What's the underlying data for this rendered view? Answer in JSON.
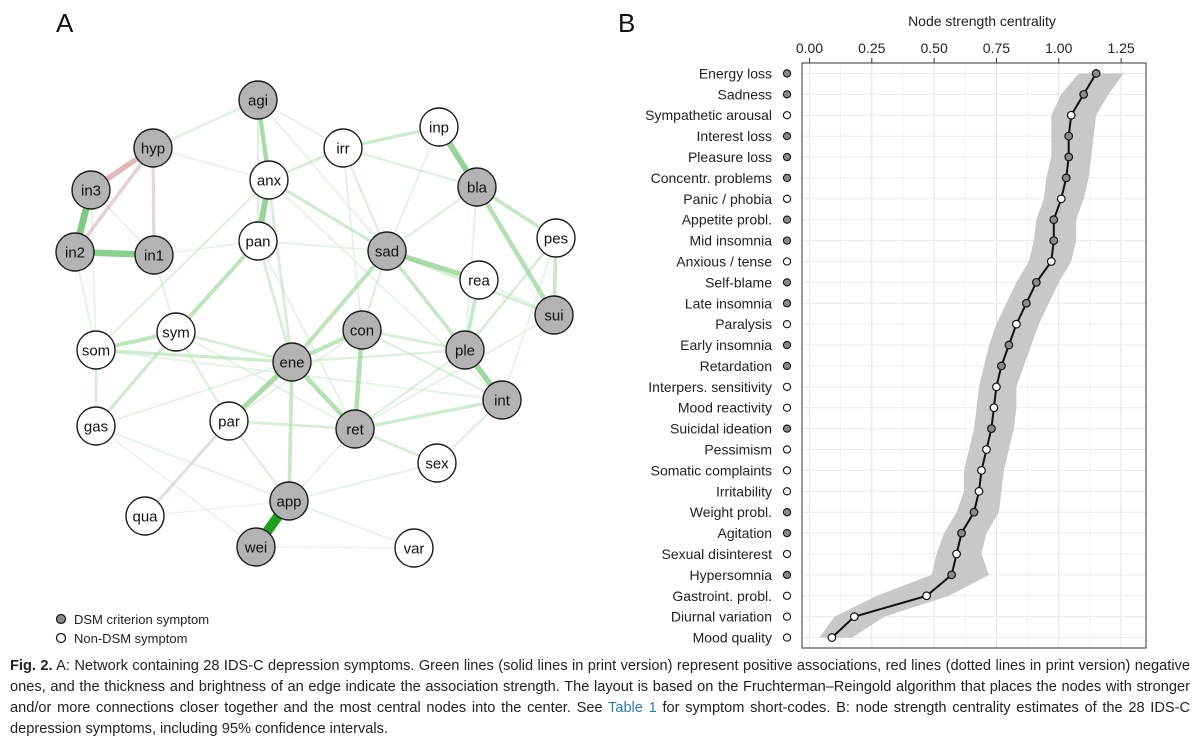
{
  "panels": {
    "a_label": "A",
    "b_label": "B"
  },
  "network": {
    "nodes": [
      {
        "id": "agi",
        "dsm": true
      },
      {
        "id": "hyp",
        "dsm": true
      },
      {
        "id": "irr",
        "dsm": false
      },
      {
        "id": "inp",
        "dsm": false
      },
      {
        "id": "anx",
        "dsm": false
      },
      {
        "id": "in3",
        "dsm": true
      },
      {
        "id": "bla",
        "dsm": true
      },
      {
        "id": "pan",
        "dsm": false
      },
      {
        "id": "sad",
        "dsm": true
      },
      {
        "id": "pes",
        "dsm": false
      },
      {
        "id": "in2",
        "dsm": true
      },
      {
        "id": "in1",
        "dsm": true
      },
      {
        "id": "rea",
        "dsm": false
      },
      {
        "id": "sui",
        "dsm": true
      },
      {
        "id": "con",
        "dsm": true
      },
      {
        "id": "sym",
        "dsm": false
      },
      {
        "id": "som",
        "dsm": false
      },
      {
        "id": "ple",
        "dsm": true
      },
      {
        "id": "ene",
        "dsm": true
      },
      {
        "id": "int",
        "dsm": true
      },
      {
        "id": "gas",
        "dsm": false
      },
      {
        "id": "par",
        "dsm": false
      },
      {
        "id": "ret",
        "dsm": true
      },
      {
        "id": "sex",
        "dsm": false
      },
      {
        "id": "app",
        "dsm": true
      },
      {
        "id": "qua",
        "dsm": false
      },
      {
        "id": "wei",
        "dsm": true
      },
      {
        "id": "var",
        "dsm": false
      }
    ],
    "edges": [
      [
        "app",
        "wei",
        1.0,
        "pos"
      ],
      [
        "in2",
        "in3",
        0.65,
        "pos"
      ],
      [
        "in2",
        "in1",
        0.6,
        "pos"
      ],
      [
        "inp",
        "bla",
        0.55,
        "pos"
      ],
      [
        "anx",
        "pan",
        0.55,
        "pos"
      ],
      [
        "agi",
        "anx",
        0.4,
        "pos"
      ],
      [
        "ple",
        "int",
        0.5,
        "pos"
      ],
      [
        "ene",
        "par",
        0.45,
        "pos"
      ],
      [
        "sad",
        "rea",
        0.45,
        "pos"
      ],
      [
        "ene",
        "ret",
        0.4,
        "pos"
      ],
      [
        "bla",
        "sui",
        0.4,
        "pos"
      ],
      [
        "con",
        "ret",
        0.4,
        "pos"
      ],
      [
        "con",
        "ene",
        0.35,
        "pos"
      ],
      [
        "sad",
        "ene",
        0.35,
        "pos"
      ],
      [
        "pan",
        "sym",
        0.35,
        "pos"
      ],
      [
        "sym",
        "som",
        0.35,
        "pos"
      ],
      [
        "ene",
        "app",
        0.3,
        "pos"
      ],
      [
        "bla",
        "pes",
        0.3,
        "pos"
      ],
      [
        "pes",
        "sui",
        0.3,
        "pos"
      ],
      [
        "rea",
        "ple",
        0.3,
        "pos"
      ],
      [
        "irr",
        "inp",
        0.25,
        "pos"
      ],
      [
        "sad",
        "ple",
        0.3,
        "pos"
      ],
      [
        "sym",
        "gas",
        0.25,
        "pos"
      ],
      [
        "som",
        "gas",
        0.2,
        "pos"
      ],
      [
        "som",
        "ene",
        0.25,
        "pos"
      ],
      [
        "anx",
        "sad",
        0.25,
        "pos"
      ],
      [
        "agi",
        "ene",
        0.2,
        "pos"
      ],
      [
        "ret",
        "sex",
        0.2,
        "pos"
      ],
      [
        "int",
        "ret",
        0.25,
        "pos"
      ],
      [
        "pes",
        "ple",
        0.2,
        "pos"
      ],
      [
        "par",
        "ret",
        0.2,
        "pos"
      ],
      [
        "sad",
        "sui",
        0.2,
        "pos"
      ],
      [
        "con",
        "ple",
        0.2,
        "pos"
      ],
      [
        "irr",
        "anx",
        0.2,
        "pos"
      ],
      [
        "sym",
        "ene",
        0.2,
        "pos"
      ],
      [
        "hyp",
        "agi",
        0.15,
        "pos"
      ],
      [
        "hyp",
        "in3",
        0.5,
        "neg"
      ],
      [
        "hyp",
        "in2",
        0.3,
        "neg"
      ],
      [
        "hyp",
        "in1",
        0.25,
        "neg"
      ],
      [
        "par",
        "qua",
        0.2,
        "neg"
      ],
      [
        "app",
        "var",
        0.1,
        "pos"
      ],
      [
        "app",
        "sex",
        0.1,
        "pos"
      ],
      [
        "sad",
        "irr",
        0.15,
        "pos"
      ],
      [
        "pan",
        "ene",
        0.2,
        "pos"
      ],
      [
        "bla",
        "sad",
        0.15,
        "pos"
      ],
      [
        "in1",
        "sym",
        0.1,
        "pos"
      ],
      [
        "gas",
        "ene",
        0.1,
        "pos"
      ],
      [
        "con",
        "sad",
        0.15,
        "pos"
      ],
      [
        "pan",
        "sad",
        0.1,
        "pos"
      ],
      [
        "irr",
        "bla",
        0.15,
        "pos"
      ],
      [
        "int",
        "sex",
        0.15,
        "pos"
      ],
      [
        "rea",
        "sui",
        0.1,
        "pos"
      ],
      [
        "agi",
        "irr",
        0.1,
        "pos"
      ],
      [
        "anx",
        "som",
        0.15,
        "pos"
      ],
      [
        "agi",
        "pan",
        0.15,
        "pos"
      ],
      [
        "ene",
        "ple",
        0.15,
        "pos"
      ],
      [
        "in3",
        "in1",
        0.1,
        "pos"
      ],
      [
        "in2",
        "som",
        0.1,
        "pos"
      ],
      [
        "par",
        "app",
        0.15,
        "pos"
      ],
      [
        "ret",
        "app",
        0.1,
        "pos"
      ],
      [
        "ret",
        "ple",
        0.15,
        "pos"
      ],
      [
        "con",
        "int",
        0.15,
        "pos"
      ],
      [
        "par",
        "sym",
        0.15,
        "pos"
      ],
      [
        "gas",
        "app",
        0.1,
        "pos"
      ],
      [
        "con",
        "par",
        0.1,
        "pos"
      ],
      [
        "inp",
        "sad",
        0.1,
        "pos"
      ],
      [
        "pes",
        "int",
        0.1,
        "pos"
      ],
      [
        "anx",
        "int",
        0.1,
        "pos"
      ],
      [
        "hyp",
        "anx",
        0.08,
        "pos"
      ],
      [
        "agi",
        "sad",
        0.1,
        "pos"
      ],
      [
        "irr",
        "con",
        0.1,
        "pos"
      ],
      [
        "som",
        "int",
        0.1,
        "pos"
      ],
      [
        "in1",
        "pan",
        0.08,
        "pos"
      ],
      [
        "ret",
        "sui",
        0.1,
        "pos"
      ],
      [
        "bla",
        "ple",
        0.1,
        "pos"
      ],
      [
        "in3",
        "som",
        0.08,
        "pos"
      ],
      [
        "gas",
        "wei",
        0.08,
        "pos"
      ],
      [
        "wei",
        "var",
        0.06,
        "pos"
      ],
      [
        "qua",
        "app",
        0.06,
        "pos"
      ],
      [
        "pan",
        "ret",
        0.1,
        "pos"
      ],
      [
        "sym",
        "ret",
        0.1,
        "pos"
      ]
    ]
  },
  "legend": {
    "dsm_label": "DSM criterion symptom",
    "non_dsm_label": "Non-DSM symptom"
  },
  "chart_data": {
    "type": "line",
    "title": "Node strength centrality",
    "xlabel": "",
    "ylabel": "",
    "xlim": [
      -0.03,
      1.35
    ],
    "xticks": [
      0.0,
      0.25,
      0.5,
      0.75,
      1.0,
      1.25
    ],
    "xtick_labels": [
      "0.00",
      "0.25",
      "0.50",
      "0.75",
      "1.00",
      "1.25"
    ],
    "grid": true,
    "series": [
      {
        "name": "Node strength centrality",
        "points": [
          {
            "label": "Energy loss",
            "dsm": true,
            "value": 1.15,
            "lo": 1.08,
            "hi": 1.26
          },
          {
            "label": "Sadness",
            "dsm": true,
            "value": 1.1,
            "lo": 1.01,
            "hi": 1.2
          },
          {
            "label": "Sympathetic arousal",
            "dsm": false,
            "value": 1.05,
            "lo": 0.97,
            "hi": 1.15
          },
          {
            "label": "Interest loss",
            "dsm": true,
            "value": 1.04,
            "lo": 0.97,
            "hi": 1.14
          },
          {
            "label": "Pleasure loss",
            "dsm": true,
            "value": 1.04,
            "lo": 0.97,
            "hi": 1.13
          },
          {
            "label": "Concentr. problems",
            "dsm": true,
            "value": 1.03,
            "lo": 0.95,
            "hi": 1.12
          },
          {
            "label": "Panic / phobia",
            "dsm": false,
            "value": 1.01,
            "lo": 0.94,
            "hi": 1.1
          },
          {
            "label": "Appetite probl.",
            "dsm": true,
            "value": 0.98,
            "lo": 0.91,
            "hi": 1.07
          },
          {
            "label": "Mid insomnia",
            "dsm": true,
            "value": 0.98,
            "lo": 0.9,
            "hi": 1.07
          },
          {
            "label": "Anxious / tense",
            "dsm": false,
            "value": 0.97,
            "lo": 0.88,
            "hi": 1.05
          },
          {
            "label": "Self-blame",
            "dsm": true,
            "value": 0.91,
            "lo": 0.83,
            "hi": 1.0
          },
          {
            "label": "Late insomnia",
            "dsm": true,
            "value": 0.87,
            "lo": 0.79,
            "hi": 0.96
          },
          {
            "label": "Paralysis",
            "dsm": false,
            "value": 0.83,
            "lo": 0.75,
            "hi": 0.92
          },
          {
            "label": "Early insomnia",
            "dsm": true,
            "value": 0.8,
            "lo": 0.72,
            "hi": 0.89
          },
          {
            "label": "Retardation",
            "dsm": true,
            "value": 0.77,
            "lo": 0.7,
            "hi": 0.86
          },
          {
            "label": "Interpers. sensitivity",
            "dsm": false,
            "value": 0.75,
            "lo": 0.68,
            "hi": 0.83
          },
          {
            "label": "Mood reactivity",
            "dsm": false,
            "value": 0.74,
            "lo": 0.67,
            "hi": 0.83
          },
          {
            "label": "Suicidal ideation",
            "dsm": true,
            "value": 0.73,
            "lo": 0.66,
            "hi": 0.82
          },
          {
            "label": "Pessimism",
            "dsm": false,
            "value": 0.71,
            "lo": 0.64,
            "hi": 0.8
          },
          {
            "label": "Somatic complaints",
            "dsm": false,
            "value": 0.69,
            "lo": 0.62,
            "hi": 0.78
          },
          {
            "label": "Irritability",
            "dsm": false,
            "value": 0.68,
            "lo": 0.62,
            "hi": 0.77
          },
          {
            "label": "Weight probl.",
            "dsm": true,
            "value": 0.66,
            "lo": 0.59,
            "hi": 0.76
          },
          {
            "label": "Agitation",
            "dsm": true,
            "value": 0.61,
            "lo": 0.54,
            "hi": 0.71
          },
          {
            "label": "Sexual disinterest",
            "dsm": false,
            "value": 0.59,
            "lo": 0.51,
            "hi": 0.69
          },
          {
            "label": "Hypersomnia",
            "dsm": true,
            "value": 0.57,
            "lo": 0.49,
            "hi": 0.72
          },
          {
            "label": "Gastroint. probl.",
            "dsm": false,
            "value": 0.47,
            "lo": 0.27,
            "hi": 0.56
          },
          {
            "label": "Diurnal variation",
            "dsm": false,
            "value": 0.18,
            "lo": 0.1,
            "hi": 0.3
          },
          {
            "label": "Mood quality",
            "dsm": false,
            "value": 0.09,
            "lo": 0.04,
            "hi": 0.17
          }
        ]
      }
    ]
  },
  "caption": {
    "label": "Fig. 2.",
    "text_before_link": " A: Network containing 28 IDS-C depression symptoms. Green lines (solid lines in print version) represent positive associations, red lines (dotted lines in print version) negative ones, and the thickness and brightness of an edge indicate the association strength. The layout is based on the Fruchterman–Reingold algorithm that places the nodes with stronger and/or more connections closer together and the most central nodes into the center. See ",
    "link_text": "Table 1",
    "text_after_link": " for symptom short-codes. B: node strength centrality estimates of the 28 IDS-C depression symptoms, including 95% confidence intervals."
  },
  "colors": {
    "dsm_fill": "#b3b3b3",
    "non_dsm_fill": "#ffffff",
    "positive_edge": "#2ca02c",
    "negative_edge": "#d62728",
    "ci_band": "#c8c8c8",
    "link": "#2a7ab5"
  }
}
